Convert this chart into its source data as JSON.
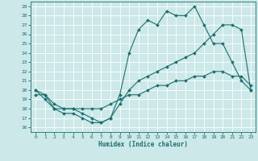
{
  "xlabel": "Humidex (Indice chaleur)",
  "xlim": [
    -0.5,
    23.5
  ],
  "ylim": [
    15.5,
    29.5
  ],
  "xticks": [
    0,
    1,
    2,
    3,
    4,
    5,
    6,
    7,
    8,
    9,
    10,
    11,
    12,
    13,
    14,
    15,
    16,
    17,
    18,
    19,
    20,
    21,
    22,
    23
  ],
  "yticks": [
    16,
    17,
    18,
    19,
    20,
    21,
    22,
    23,
    24,
    25,
    26,
    27,
    28,
    29
  ],
  "bg_color": "#cce8e8",
  "line_color": "#1a7070",
  "line1_y": [
    20,
    19,
    18,
    17.5,
    17.5,
    17,
    16.5,
    16.5,
    17,
    19.5,
    24,
    26.5,
    27.5,
    27,
    28.5,
    28,
    28,
    29,
    27,
    25,
    25,
    23,
    21,
    20
  ],
  "line2_y": [
    20,
    19.5,
    18,
    18,
    18,
    17.5,
    17,
    16.5,
    17,
    18.5,
    20,
    21,
    21.5,
    22,
    22.5,
    23,
    23.5,
    24,
    25,
    26,
    27,
    27,
    26.5,
    20
  ],
  "line3_y": [
    19.5,
    19.5,
    18.5,
    18,
    18,
    18,
    18,
    18,
    18.5,
    19,
    19.5,
    19.5,
    20,
    20.5,
    20.5,
    21,
    21,
    21.5,
    21.5,
    22,
    22,
    21.5,
    21.5,
    20.5
  ]
}
